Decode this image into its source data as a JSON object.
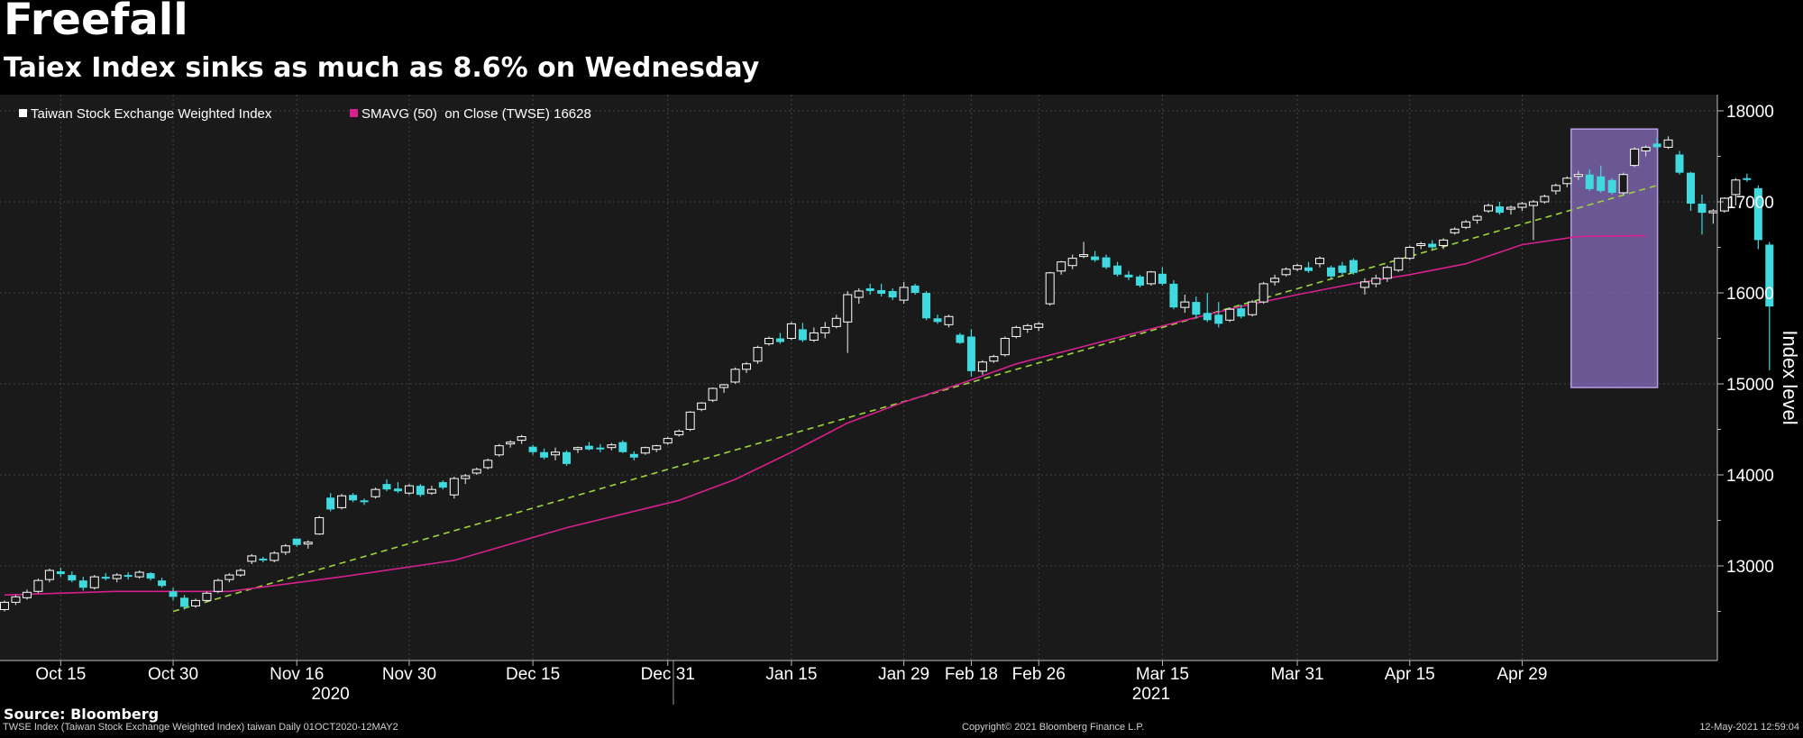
{
  "title": "Freefall",
  "subtitle": "Taiex Index sinks as much as 8.6% on Wednesday",
  "source": "Source: Bloomberg",
  "footer": {
    "left": "TWSE Index (Taiwan Stock Exchange Weighted Index) taiwan  Daily 01OCT2020-12MAY2",
    "center": "Copyright© 2021 Bloomberg Finance L.P.",
    "right": "12-May-2021 12:59:04"
  },
  "colors": {
    "background": "#000000",
    "plot_area": "#1a1a1a",
    "candle_up": "#ffffff",
    "candle_down": "#3fd9df",
    "sma": "#d6208e",
    "trendline": "#9bd43b",
    "highlight_fill": "#8a6fc4",
    "highlight_edge": "#b79fe6"
  },
  "chart_data": {
    "type": "candlestick",
    "ylabel": "Index level",
    "ylim": [
      12200,
      18200
    ],
    "yticks": [
      13000,
      14000,
      15000,
      16000,
      17000,
      18000
    ],
    "grid": true,
    "legend": [
      {
        "marker": "white-square",
        "label": "Taiwan Stock Exchange Weighted Index"
      },
      {
        "marker": "magenta-square",
        "label": "SMAVG (50)  on Close (TWSE) 16628"
      }
    ],
    "x_ticks": [
      {
        "label": "Oct 15",
        "i": 5
      },
      {
        "label": "Oct 30",
        "i": 15
      },
      {
        "label": "Nov 16",
        "i": 26
      },
      {
        "label": "Nov 30",
        "i": 36
      },
      {
        "label": "Dec 15",
        "i": 47
      },
      {
        "label": "Dec 31",
        "i": 59
      },
      {
        "label": "Jan 15",
        "i": 70
      },
      {
        "label": "Jan 29",
        "i": 80
      },
      {
        "label": "Feb 18",
        "i": 86
      },
      {
        "label": "Feb 26",
        "i": 92
      },
      {
        "label": "Mar 15",
        "i": 103
      },
      {
        "label": "Mar 31",
        "i": 115
      },
      {
        "label": "Apr 15",
        "i": 125
      },
      {
        "label": "Apr 29",
        "i": 135
      }
    ],
    "year_labels": [
      {
        "label": "2020",
        "i": 29
      },
      {
        "label": "2021",
        "i": 102
      }
    ],
    "year_separator_i": 59.5,
    "trendline": {
      "from": {
        "i": 15,
        "value": 12500
      },
      "to": {
        "i": 146,
        "value": 17130
      }
    },
    "highlight": {
      "from_i": 140,
      "to_i": 146,
      "y_low": 14960,
      "y_high": 17800
    },
    "sma": [
      {
        "i": 0,
        "value": 12680
      },
      {
        "i": 10,
        "value": 12720
      },
      {
        "i": 20,
        "value": 12720
      },
      {
        "i": 30,
        "value": 12880
      },
      {
        "i": 40,
        "value": 13060
      },
      {
        "i": 50,
        "value": 13420
      },
      {
        "i": 60,
        "value": 13720
      },
      {
        "i": 65,
        "value": 13950
      },
      {
        "i": 70,
        "value": 14250
      },
      {
        "i": 75,
        "value": 14570
      },
      {
        "i": 80,
        "value": 14800
      },
      {
        "i": 85,
        "value": 15000
      },
      {
        "i": 90,
        "value": 15220
      },
      {
        "i": 95,
        "value": 15380
      },
      {
        "i": 100,
        "value": 15540
      },
      {
        "i": 105,
        "value": 15700
      },
      {
        "i": 110,
        "value": 15850
      },
      {
        "i": 115,
        "value": 15980
      },
      {
        "i": 120,
        "value": 16100
      },
      {
        "i": 125,
        "value": 16200
      },
      {
        "i": 130,
        "value": 16320
      },
      {
        "i": 135,
        "value": 16530
      },
      {
        "i": 140,
        "value": 16620
      },
      {
        "i": 146,
        "value": 16628
      }
    ],
    "candles": [
      [
        12520,
        12620,
        12500,
        12600
      ],
      [
        12600,
        12680,
        12570,
        12660
      ],
      [
        12650,
        12740,
        12630,
        12710
      ],
      [
        12720,
        12860,
        12700,
        12840
      ],
      [
        12850,
        12970,
        12820,
        12950
      ],
      [
        12940,
        12980,
        12880,
        12910
      ],
      [
        12900,
        12940,
        12820,
        12840
      ],
      [
        12840,
        12880,
        12730,
        12760
      ],
      [
        12760,
        12900,
        12740,
        12880
      ],
      [
        12880,
        12920,
        12840,
        12860
      ],
      [
        12860,
        12920,
        12820,
        12900
      ],
      [
        12900,
        12930,
        12850,
        12880
      ],
      [
        12880,
        12950,
        12860,
        12930
      ],
      [
        12920,
        12930,
        12840,
        12860
      ],
      [
        12840,
        12870,
        12760,
        12780
      ],
      [
        12720,
        12760,
        12620,
        12660
      ],
      [
        12650,
        12680,
        12520,
        12550
      ],
      [
        12560,
        12640,
        12540,
        12620
      ],
      [
        12620,
        12720,
        12600,
        12700
      ],
      [
        12720,
        12860,
        12700,
        12840
      ],
      [
        12850,
        12920,
        12820,
        12900
      ],
      [
        12900,
        12970,
        12880,
        12950
      ],
      [
        13050,
        13130,
        13020,
        13110
      ],
      [
        13080,
        13100,
        13040,
        13060
      ],
      [
        13060,
        13160,
        13040,
        13140
      ],
      [
        13150,
        13240,
        13120,
        13220
      ],
      [
        13300,
        13250,
        13210,
        13230
      ],
      [
        13240,
        13280,
        13190,
        13260
      ],
      [
        13350,
        13550,
        13340,
        13530
      ],
      [
        13750,
        13800,
        13600,
        13620
      ],
      [
        13640,
        13790,
        13620,
        13770
      ],
      [
        13780,
        13800,
        13700,
        13720
      ],
      [
        13720,
        13740,
        13670,
        13700
      ],
      [
        13760,
        13860,
        13740,
        13840
      ],
      [
        13900,
        13950,
        13820,
        13840
      ],
      [
        13850,
        13920,
        13800,
        13820
      ],
      [
        13800,
        13900,
        13780,
        13880
      ],
      [
        13880,
        13900,
        13760,
        13780
      ],
      [
        13800,
        13880,
        13780,
        13840
      ],
      [
        13920,
        13940,
        13840,
        13860
      ],
      [
        13780,
        13980,
        13740,
        13960
      ],
      [
        13960,
        14010,
        13900,
        13990
      ],
      [
        14020,
        14080,
        14000,
        14060
      ],
      [
        14080,
        14180,
        14060,
        14160
      ],
      [
        14220,
        14340,
        14200,
        14320
      ],
      [
        14340,
        14380,
        14300,
        14360
      ],
      [
        14380,
        14440,
        14340,
        14420
      ],
      [
        14310,
        14330,
        14220,
        14250
      ],
      [
        14250,
        14290,
        14170,
        14190
      ],
      [
        14220,
        14300,
        14160,
        14250
      ],
      [
        14250,
        14270,
        14100,
        14120
      ],
      [
        14280,
        14310,
        14240,
        14300
      ],
      [
        14320,
        14360,
        14270,
        14280
      ],
      [
        14300,
        14340,
        14250,
        14280
      ],
      [
        14300,
        14350,
        14270,
        14330
      ],
      [
        14360,
        14380,
        14240,
        14250
      ],
      [
        14230,
        14260,
        14160,
        14190
      ],
      [
        14240,
        14310,
        14220,
        14300
      ],
      [
        14280,
        14330,
        14250,
        14320
      ],
      [
        14350,
        14420,
        14330,
        14400
      ],
      [
        14440,
        14500,
        14420,
        14480
      ],
      [
        14500,
        14700,
        14480,
        14690
      ],
      [
        14720,
        14800,
        14700,
        14790
      ],
      [
        14820,
        14960,
        14800,
        14950
      ],
      [
        14960,
        15000,
        14900,
        14990
      ],
      [
        15020,
        15180,
        15000,
        15160
      ],
      [
        15160,
        15240,
        15120,
        15220
      ],
      [
        15250,
        15420,
        15220,
        15400
      ],
      [
        15440,
        15520,
        15420,
        15500
      ],
      [
        15500,
        15560,
        15440,
        15460
      ],
      [
        15500,
        15680,
        15480,
        15660
      ],
      [
        15600,
        15670,
        15460,
        15480
      ],
      [
        15480,
        15620,
        15460,
        15560
      ],
      [
        15560,
        15680,
        15500,
        15620
      ],
      [
        15630,
        15760,
        15610,
        15720
      ],
      [
        15680,
        16020,
        15340,
        15980
      ],
      [
        15950,
        16050,
        15880,
        16020
      ],
      [
        16050,
        16100,
        15980,
        16020
      ],
      [
        16030,
        16100,
        15960,
        15990
      ],
      [
        16020,
        16050,
        15920,
        15950
      ],
      [
        15920,
        16120,
        15880,
        16060
      ],
      [
        16080,
        16100,
        15980,
        16000
      ],
      [
        16000,
        16020,
        15700,
        15720
      ],
      [
        15720,
        15760,
        15660,
        15680
      ],
      [
        15650,
        15760,
        15620,
        15740
      ],
      [
        15540,
        15560,
        15440,
        15450
      ],
      [
        15520,
        15600,
        15080,
        15140
      ],
      [
        15140,
        15260,
        15100,
        15240
      ],
      [
        15250,
        15320,
        15230,
        15300
      ],
      [
        15320,
        15520,
        15300,
        15500
      ],
      [
        15520,
        15640,
        15500,
        15620
      ],
      [
        15600,
        15660,
        15560,
        15640
      ],
      [
        15620,
        15680,
        15580,
        15660
      ],
      [
        15880,
        16230,
        15860,
        16220
      ],
      [
        16240,
        16350,
        16200,
        16340
      ],
      [
        16300,
        16420,
        16260,
        16380
      ],
      [
        16400,
        16560,
        16380,
        16420
      ],
      [
        16400,
        16460,
        16340,
        16360
      ],
      [
        16390,
        16420,
        16260,
        16280
      ],
      [
        16300,
        16340,
        16180,
        16200
      ],
      [
        16200,
        16240,
        16140,
        16170
      ],
      [
        16180,
        16200,
        16060,
        16080
      ],
      [
        16100,
        16240,
        16080,
        16230
      ],
      [
        16210,
        16280,
        16080,
        16100
      ],
      [
        16100,
        16140,
        15820,
        15840
      ],
      [
        15840,
        15980,
        15780,
        15900
      ],
      [
        15900,
        15960,
        15720,
        15760
      ],
      [
        15780,
        16000,
        15680,
        15700
      ],
      [
        15760,
        15900,
        15620,
        15660
      ],
      [
        15700,
        15840,
        15680,
        15820
      ],
      [
        15830,
        15870,
        15720,
        15740
      ],
      [
        15760,
        15920,
        15740,
        15900
      ],
      [
        15900,
        16120,
        15880,
        16100
      ],
      [
        16120,
        16200,
        16080,
        16160
      ],
      [
        16200,
        16280,
        16180,
        16260
      ],
      [
        16260,
        16320,
        16240,
        16300
      ],
      [
        16280,
        16340,
        16220,
        16240
      ],
      [
        16320,
        16400,
        16280,
        16380
      ],
      [
        16280,
        16300,
        16160,
        16180
      ],
      [
        16300,
        16340,
        16200,
        16220
      ],
      [
        16360,
        16380,
        16200,
        16220
      ],
      [
        16060,
        16160,
        15980,
        16120
      ],
      [
        16100,
        16200,
        16060,
        16160
      ],
      [
        16160,
        16300,
        16120,
        16280
      ],
      [
        16250,
        16390,
        16230,
        16380
      ],
      [
        16380,
        16520,
        16360,
        16500
      ],
      [
        16520,
        16560,
        16480,
        16540
      ],
      [
        16540,
        16580,
        16480,
        16500
      ],
      [
        16520,
        16600,
        16480,
        16580
      ],
      [
        16660,
        16720,
        16640,
        16700
      ],
      [
        16720,
        16800,
        16700,
        16780
      ],
      [
        16800,
        16860,
        16760,
        16840
      ],
      [
        16900,
        16980,
        16880,
        16960
      ],
      [
        16950,
        17000,
        16860,
        16880
      ],
      [
        16920,
        16960,
        16860,
        16940
      ],
      [
        16940,
        17000,
        16900,
        16980
      ],
      [
        16960,
        17020,
        16580,
        17000
      ],
      [
        17000,
        17080,
        16980,
        17060
      ],
      [
        17120,
        17200,
        17080,
        17180
      ],
      [
        17200,
        17280,
        17160,
        17260
      ],
      [
        17280,
        17340,
        17240,
        17300
      ],
      [
        17300,
        17360,
        17120,
        17140
      ],
      [
        17280,
        17400,
        17100,
        17120
      ],
      [
        17240,
        17260,
        17080,
        17100
      ],
      [
        17100,
        17320,
        17080,
        17300
      ],
      [
        17400,
        17600,
        17380,
        17580
      ],
      [
        17560,
        17620,
        17500,
        17600
      ],
      [
        17640,
        17700,
        17580,
        17600
      ],
      [
        17600,
        17720,
        17580,
        17680
      ],
      [
        17520,
        17560,
        17300,
        17320
      ],
      [
        17320,
        17330,
        16900,
        16980
      ],
      [
        16980,
        17080,
        16640,
        16880
      ],
      [
        16880,
        16920,
        16760,
        16900
      ],
      [
        16900,
        17050,
        16880,
        17040
      ],
      [
        17080,
        17260,
        16960,
        17240
      ],
      [
        17260,
        17310,
        17220,
        17240
      ],
      [
        17150,
        17180,
        16480,
        16580
      ],
      [
        16530,
        16560,
        15150,
        15850
      ]
    ]
  }
}
